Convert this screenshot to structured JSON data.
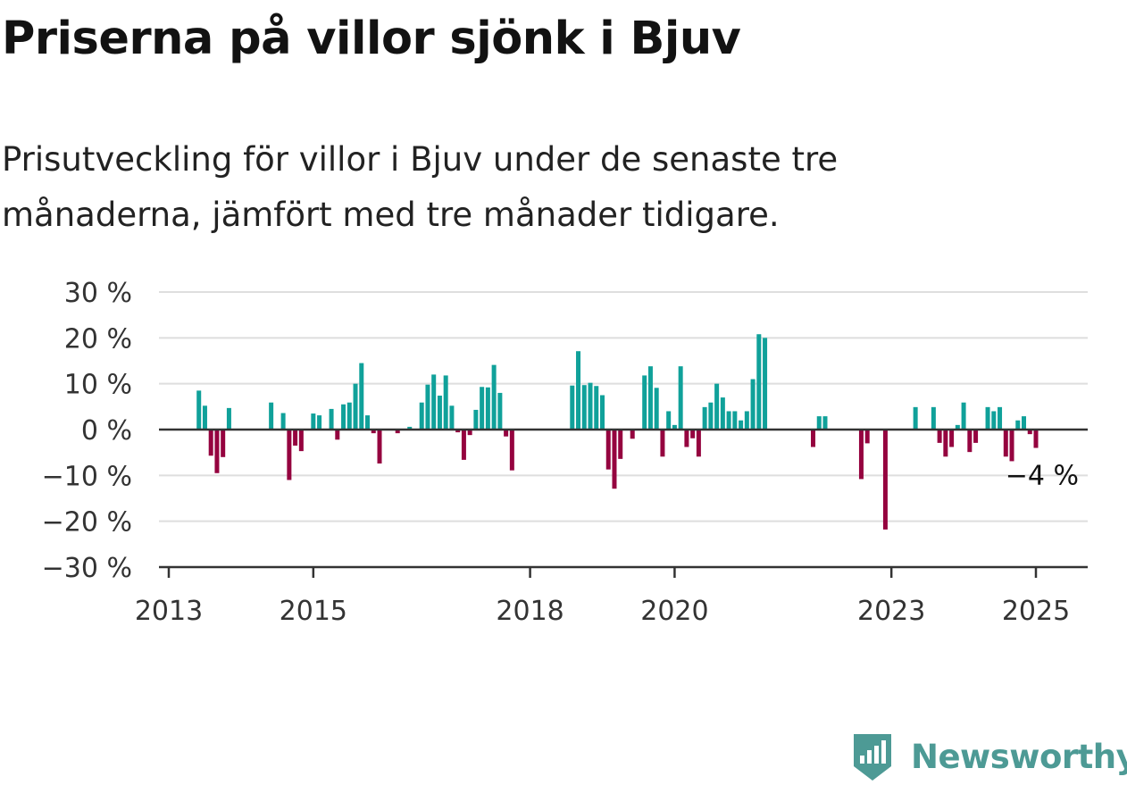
{
  "header": {
    "title": "Priserna på villor sjönk i Bjuv",
    "subtitle": "Prisutveckling för villor i Bjuv under de senaste tre månaderna, jämfört med tre månader tidigare."
  },
  "brand": {
    "name": "Newsworthy",
    "color": "#4d9a95"
  },
  "colors": {
    "positive": "#10a19a",
    "negative": "#95033f",
    "grid": "#dedede",
    "axis": "#333333"
  },
  "chart_data": {
    "type": "bar",
    "title": "Priserna på villor sjönk i Bjuv",
    "subtitle": "Prisutveckling för villor i Bjuv under de senaste tre månaderna, jämfört med tre månader tidigare.",
    "xlabel": "",
    "ylabel": "",
    "x_unit": "month",
    "ylim": [
      -30,
      30
    ],
    "y_ticks": [
      30,
      20,
      10,
      0,
      -10,
      -20,
      -30
    ],
    "y_tick_labels": [
      "30 %",
      "20 %",
      "10 %",
      "0 %",
      "−10 %",
      "−20 %",
      "−30 %"
    ],
    "x_ticks": [
      "2013-01",
      "2015-01",
      "2018-01",
      "2020-01",
      "2023-01",
      "2025-01"
    ],
    "x_tick_labels": [
      "2013",
      "2015",
      "2018",
      "2020",
      "2023",
      "2025"
    ],
    "grid": true,
    "legend": "none",
    "annotation": {
      "date": "2025-01",
      "value": -4,
      "label": "−4 %"
    },
    "data": [
      {
        "date": "2013-06",
        "value": 8.5
      },
      {
        "date": "2013-07",
        "value": 5.2
      },
      {
        "date": "2013-08",
        "value": -5.7
      },
      {
        "date": "2013-09",
        "value": -9.5
      },
      {
        "date": "2013-10",
        "value": -6
      },
      {
        "date": "2013-11",
        "value": 4.7
      },
      {
        "date": "2014-06",
        "value": 5.9
      },
      {
        "date": "2014-08",
        "value": 3.6
      },
      {
        "date": "2014-09",
        "value": -11
      },
      {
        "date": "2014-10",
        "value": -3.5
      },
      {
        "date": "2014-11",
        "value": -4.7
      },
      {
        "date": "2015-01",
        "value": 3.5
      },
      {
        "date": "2015-02",
        "value": 3.1
      },
      {
        "date": "2015-04",
        "value": 4.5
      },
      {
        "date": "2015-05",
        "value": -2.2
      },
      {
        "date": "2015-06",
        "value": 5.5
      },
      {
        "date": "2015-07",
        "value": 5.9
      },
      {
        "date": "2015-08",
        "value": 10
      },
      {
        "date": "2015-09",
        "value": 14.5
      },
      {
        "date": "2015-10",
        "value": 3.1
      },
      {
        "date": "2015-11",
        "value": -0.8
      },
      {
        "date": "2015-12",
        "value": -7.4
      },
      {
        "date": "2016-03",
        "value": -0.8
      },
      {
        "date": "2016-05",
        "value": 0.6
      },
      {
        "date": "2016-07",
        "value": 5.9
      },
      {
        "date": "2016-08",
        "value": 9.8
      },
      {
        "date": "2016-09",
        "value": 12
      },
      {
        "date": "2016-10",
        "value": 7.4
      },
      {
        "date": "2016-11",
        "value": 11.8
      },
      {
        "date": "2016-12",
        "value": 5.2
      },
      {
        "date": "2017-01",
        "value": -0.6
      },
      {
        "date": "2017-02",
        "value": -6.6
      },
      {
        "date": "2017-03",
        "value": -1.2
      },
      {
        "date": "2017-04",
        "value": 4.3
      },
      {
        "date": "2017-05",
        "value": 9.3
      },
      {
        "date": "2017-06",
        "value": 9.2
      },
      {
        "date": "2017-07",
        "value": 14.1
      },
      {
        "date": "2017-08",
        "value": 8
      },
      {
        "date": "2017-09",
        "value": -1.5
      },
      {
        "date": "2017-10",
        "value": -8.9
      },
      {
        "date": "2018-08",
        "value": 9.6
      },
      {
        "date": "2018-09",
        "value": 17.1
      },
      {
        "date": "2018-10",
        "value": 9.7
      },
      {
        "date": "2018-11",
        "value": 10.2
      },
      {
        "date": "2018-12",
        "value": 9.5
      },
      {
        "date": "2019-01",
        "value": 7.5
      },
      {
        "date": "2019-02",
        "value": -8.7
      },
      {
        "date": "2019-03",
        "value": -12.9
      },
      {
        "date": "2019-04",
        "value": -6.4
      },
      {
        "date": "2019-06",
        "value": -2
      },
      {
        "date": "2019-08",
        "value": 11.8
      },
      {
        "date": "2019-09",
        "value": 13.8
      },
      {
        "date": "2019-10",
        "value": 9.1
      },
      {
        "date": "2019-11",
        "value": -5.9
      },
      {
        "date": "2019-12",
        "value": 4
      },
      {
        "date": "2020-01",
        "value": 1
      },
      {
        "date": "2020-02",
        "value": 13.8
      },
      {
        "date": "2020-03",
        "value": -3.8
      },
      {
        "date": "2020-04",
        "value": -1.9
      },
      {
        "date": "2020-05",
        "value": -5.9
      },
      {
        "date": "2020-06",
        "value": 4.9
      },
      {
        "date": "2020-07",
        "value": 5.9
      },
      {
        "date": "2020-08",
        "value": 10
      },
      {
        "date": "2020-09",
        "value": 7
      },
      {
        "date": "2020-10",
        "value": 4
      },
      {
        "date": "2020-11",
        "value": 4
      },
      {
        "date": "2020-12",
        "value": 2
      },
      {
        "date": "2021-01",
        "value": 4
      },
      {
        "date": "2021-02",
        "value": 11
      },
      {
        "date": "2021-03",
        "value": 20.8
      },
      {
        "date": "2021-04",
        "value": 20
      },
      {
        "date": "2021-12",
        "value": -3.8
      },
      {
        "date": "2022-01",
        "value": 2.9
      },
      {
        "date": "2022-02",
        "value": 2.9
      },
      {
        "date": "2022-08",
        "value": -10.8
      },
      {
        "date": "2022-09",
        "value": -3
      },
      {
        "date": "2022-12",
        "value": -21.8
      },
      {
        "date": "2023-05",
        "value": 4.9
      },
      {
        "date": "2023-08",
        "value": 4.9
      },
      {
        "date": "2023-09",
        "value": -2.9
      },
      {
        "date": "2023-10",
        "value": -5.9
      },
      {
        "date": "2023-11",
        "value": -3.8
      },
      {
        "date": "2023-12",
        "value": 1
      },
      {
        "date": "2024-01",
        "value": 5.9
      },
      {
        "date": "2024-02",
        "value": -4.9
      },
      {
        "date": "2024-03",
        "value": -2.9
      },
      {
        "date": "2024-05",
        "value": 4.9
      },
      {
        "date": "2024-06",
        "value": 4
      },
      {
        "date": "2024-07",
        "value": 4.9
      },
      {
        "date": "2024-08",
        "value": -5.9
      },
      {
        "date": "2024-09",
        "value": -6.9
      },
      {
        "date": "2024-10",
        "value": 2
      },
      {
        "date": "2024-11",
        "value": 2.9
      },
      {
        "date": "2024-12",
        "value": -1
      },
      {
        "date": "2025-01",
        "value": -4
      }
    ]
  }
}
